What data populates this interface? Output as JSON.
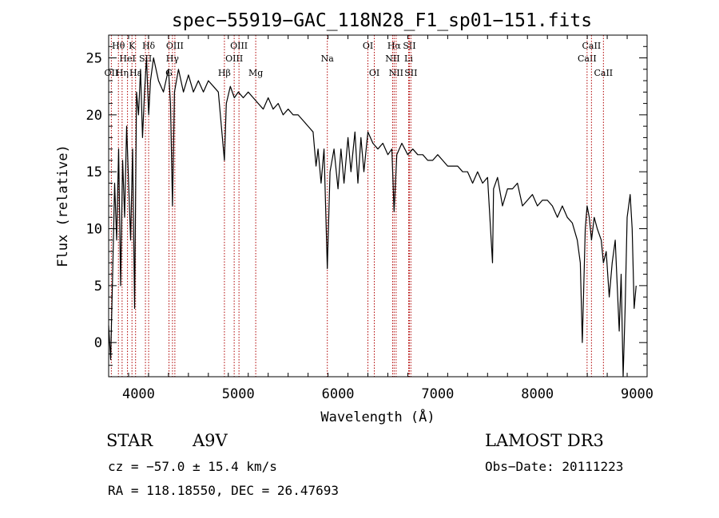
{
  "chart_data": {
    "type": "line",
    "title": "spec−55919−GAC_118N28_F1_sp01−151.fits",
    "xlabel": "Wavelength (Å)",
    "ylabel": "Flux (relative)",
    "xlim": [
      3700,
      9100
    ],
    "ylim": [
      -3,
      27
    ],
    "xticks": [
      4000,
      5000,
      6000,
      7000,
      8000,
      9000
    ],
    "yticks": [
      0,
      5,
      10,
      15,
      20,
      25
    ],
    "line_color": "#000000",
    "marker_color": "#b00000",
    "series": [
      {
        "name": "spectrum",
        "points": [
          [
            3700,
            1.5
          ],
          [
            3720,
            -1.5
          ],
          [
            3740,
            6
          ],
          [
            3760,
            14
          ],
          [
            3780,
            9
          ],
          [
            3800,
            17
          ],
          [
            3820,
            5
          ],
          [
            3840,
            16
          ],
          [
            3860,
            11
          ],
          [
            3880,
            19
          ],
          [
            3900,
            14
          ],
          [
            3920,
            9
          ],
          [
            3940,
            17
          ],
          [
            3960,
            3
          ],
          [
            3980,
            22
          ],
          [
            4000,
            20
          ],
          [
            4020,
            24
          ],
          [
            4040,
            18
          ],
          [
            4060,
            22
          ],
          [
            4080,
            25
          ],
          [
            4101,
            20
          ],
          [
            4120,
            23
          ],
          [
            4150,
            25
          ],
          [
            4200,
            23
          ],
          [
            4250,
            22
          ],
          [
            4300,
            24
          ],
          [
            4320,
            21
          ],
          [
            4340,
            12
          ],
          [
            4360,
            22
          ],
          [
            4400,
            24
          ],
          [
            4450,
            22
          ],
          [
            4500,
            23.5
          ],
          [
            4550,
            22
          ],
          [
            4600,
            23
          ],
          [
            4650,
            22
          ],
          [
            4700,
            23
          ],
          [
            4750,
            22.5
          ],
          [
            4800,
            22
          ],
          [
            4861,
            16
          ],
          [
            4880,
            21
          ],
          [
            4920,
            22.5
          ],
          [
            4960,
            21.5
          ],
          [
            5000,
            22
          ],
          [
            5050,
            21.5
          ],
          [
            5100,
            22
          ],
          [
            5150,
            21.5
          ],
          [
            5200,
            21
          ],
          [
            5250,
            20.5
          ],
          [
            5300,
            21.5
          ],
          [
            5350,
            20.5
          ],
          [
            5400,
            21
          ],
          [
            5450,
            20
          ],
          [
            5500,
            20.5
          ],
          [
            5550,
            20
          ],
          [
            5600,
            20
          ],
          [
            5650,
            19.5
          ],
          [
            5700,
            19
          ],
          [
            5750,
            18.5
          ],
          [
            5780,
            15.5
          ],
          [
            5800,
            17
          ],
          [
            5830,
            14
          ],
          [
            5860,
            17
          ],
          [
            5893,
            6.5
          ],
          [
            5920,
            15
          ],
          [
            5960,
            17
          ],
          [
            6000,
            13.5
          ],
          [
            6030,
            17
          ],
          [
            6060,
            14
          ],
          [
            6100,
            18
          ],
          [
            6130,
            15
          ],
          [
            6170,
            18.5
          ],
          [
            6200,
            14
          ],
          [
            6230,
            18
          ],
          [
            6260,
            15
          ],
          [
            6300,
            18.5
          ],
          [
            6350,
            17.5
          ],
          [
            6400,
            17
          ],
          [
            6450,
            17.5
          ],
          [
            6500,
            16.5
          ],
          [
            6540,
            17
          ],
          [
            6563,
            11.5
          ],
          [
            6590,
            16.5
          ],
          [
            6640,
            17.5
          ],
          [
            6700,
            16.5
          ],
          [
            6750,
            17
          ],
          [
            6800,
            16.5
          ],
          [
            6850,
            16.5
          ],
          [
            6900,
            16
          ],
          [
            6950,
            16
          ],
          [
            7000,
            16.5
          ],
          [
            7050,
            16
          ],
          [
            7100,
            15.5
          ],
          [
            7150,
            15.5
          ],
          [
            7200,
            15.5
          ],
          [
            7250,
            15
          ],
          [
            7300,
            15
          ],
          [
            7350,
            14
          ],
          [
            7400,
            15
          ],
          [
            7450,
            14
          ],
          [
            7500,
            14.5
          ],
          [
            7550,
            7
          ],
          [
            7560,
            13.5
          ],
          [
            7600,
            14.5
          ],
          [
            7650,
            12
          ],
          [
            7700,
            13.5
          ],
          [
            7750,
            13.5
          ],
          [
            7800,
            14
          ],
          [
            7850,
            12
          ],
          [
            7900,
            12.5
          ],
          [
            7950,
            13
          ],
          [
            8000,
            12
          ],
          [
            8050,
            12.5
          ],
          [
            8100,
            12.5
          ],
          [
            8150,
            12
          ],
          [
            8200,
            11
          ],
          [
            8250,
            12
          ],
          [
            8300,
            11
          ],
          [
            8350,
            10.5
          ],
          [
            8400,
            9
          ],
          [
            8430,
            7
          ],
          [
            8450,
            0
          ],
          [
            8480,
            10
          ],
          [
            8498,
            12
          ],
          [
            8520,
            11
          ],
          [
            8542,
            9
          ],
          [
            8570,
            11
          ],
          [
            8600,
            10
          ],
          [
            8640,
            9
          ],
          [
            8662,
            7
          ],
          [
            8690,
            8
          ],
          [
            8720,
            4
          ],
          [
            8750,
            7
          ],
          [
            8780,
            9
          ],
          [
            8800,
            5
          ],
          [
            8820,
            1
          ],
          [
            8840,
            6
          ],
          [
            8860,
            -3
          ],
          [
            8880,
            3
          ],
          [
            8900,
            11
          ],
          [
            8930,
            13
          ],
          [
            8950,
            10
          ],
          [
            8970,
            3
          ],
          [
            8990,
            5
          ]
        ]
      }
    ],
    "line_markers": [
      {
        "name": "Hθ",
        "wavelength": 3798,
        "row": 1
      },
      {
        "name": "K",
        "wavelength": 3934,
        "row": 1
      },
      {
        "name": "Hε",
        "wavelength": 3970,
        "row": 3
      },
      {
        "name": "HeI",
        "wavelength": 3889,
        "row": 2
      },
      {
        "name": "SII",
        "wavelength": 4069,
        "row": 2
      },
      {
        "name": "Hδ",
        "wavelength": 4101,
        "row": 1
      },
      {
        "name": "OIII",
        "wavelength": 4364,
        "row": 1
      },
      {
        "name": "Hγ",
        "wavelength": 4340,
        "row": 2
      },
      {
        "name": "G",
        "wavelength": 4305,
        "row": 3
      },
      {
        "name": "OII",
        "wavelength": 3727,
        "row": 3
      },
      {
        "name": "Hη",
        "wavelength": 3835,
        "row": 3
      },
      {
        "name": "Hβ",
        "wavelength": 4861,
        "row": 3
      },
      {
        "name": "OIII",
        "wavelength": 4959,
        "row": 2
      },
      {
        "name": "OIII",
        "wavelength": 5007,
        "row": 1
      },
      {
        "name": "Mg",
        "wavelength": 5175,
        "row": 3
      },
      {
        "name": "Na",
        "wavelength": 5893,
        "row": 2
      },
      {
        "name": "OI",
        "wavelength": 6300,
        "row": 1
      },
      {
        "name": "OI",
        "wavelength": 6364,
        "row": 3
      },
      {
        "name": "Hα",
        "wavelength": 6563,
        "row": 1
      },
      {
        "name": "NII",
        "wavelength": 6548,
        "row": 2
      },
      {
        "name": "NII",
        "wavelength": 6583,
        "row": 3
      },
      {
        "name": "SII",
        "wavelength": 6716,
        "row": 1
      },
      {
        "name": "Li",
        "wavelength": 6708,
        "row": 2
      },
      {
        "name": "SII",
        "wavelength": 6731,
        "row": 3
      },
      {
        "name": "CaII",
        "wavelength": 8498,
        "row": 2
      },
      {
        "name": "CaII",
        "wavelength": 8542,
        "row": 1
      },
      {
        "name": "CaII",
        "wavelength": 8662,
        "row": 3
      }
    ]
  },
  "info": {
    "class_label": "STAR",
    "subclass_label": "A9V",
    "survey": "LAMOST DR3",
    "redshift": "cz = −57.0 ± 15.4 km/s",
    "obs_date": "Obs−Date: 20111223",
    "coords": "RA = 118.18550, DEC =  26.47693"
  }
}
